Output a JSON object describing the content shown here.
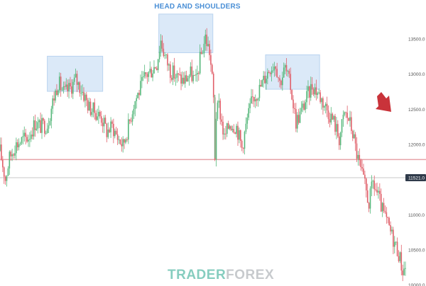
{
  "header": {
    "title": "HEAD AND SHOULDERS"
  },
  "watermark": {
    "part1": "TRADER",
    "part2": "FOREX"
  },
  "colors": {
    "up": "#55b77a",
    "down": "#e0606a",
    "neckline": "#e6a3a8",
    "price_line": "#c9c9c9",
    "highlight_fill": "#dbe9f8",
    "highlight_stroke": "#b9d3ef",
    "arrow": "#c9333a",
    "badge_bg": "#2f3a4a"
  },
  "icons": {
    "arrow": "down-right-arrow-icon"
  },
  "chart_data": {
    "type": "candlestick",
    "title": "HEAD AND SHOULDERS",
    "ylim": [
      9980,
      14050
    ],
    "y_ticks": [
      {
        "value": 13500,
        "label": "13500.0"
      },
      {
        "value": 13000,
        "label": "13000.0"
      },
      {
        "value": 12500,
        "label": "12500.0"
      },
      {
        "value": 12000,
        "label": "12000.0"
      },
      {
        "value": 11000,
        "label": "11000.0"
      },
      {
        "value": 10500,
        "label": "10500.0"
      },
      {
        "value": 10000,
        "label": "10000.0"
      }
    ],
    "current_price": {
      "value": 11521,
      "label": "11521.0"
    },
    "neckline": 11780,
    "grid": false,
    "highlight_zones": [
      {
        "name": "left-shoulder",
        "x_range": [
          70,
          152
        ],
        "y_range": [
          12750,
          13250
        ]
      },
      {
        "name": "head",
        "x_range": [
          235,
          315
        ],
        "y_range": [
          13300,
          13850
        ]
      },
      {
        "name": "right-shoulder",
        "x_range": [
          393,
          473
        ],
        "y_range": [
          12780,
          13270
        ]
      }
    ],
    "price_path": [
      [
        0,
        11900
      ],
      [
        8,
        11500
      ],
      [
        14,
        11800
      ],
      [
        22,
        11980
      ],
      [
        32,
        12050
      ],
      [
        42,
        12100
      ],
      [
        52,
        12300
      ],
      [
        60,
        12250
      ],
      [
        70,
        12280
      ],
      [
        78,
        12600
      ],
      [
        86,
        12880
      ],
      [
        95,
        12720
      ],
      [
        104,
        12800
      ],
      [
        112,
        12920
      ],
      [
        122,
        12750
      ],
      [
        132,
        12520
      ],
      [
        142,
        12450
      ],
      [
        150,
        12380
      ],
      [
        158,
        12180
      ],
      [
        166,
        12250
      ],
      [
        174,
        12100
      ],
      [
        182,
        11980
      ],
      [
        190,
        12250
      ],
      [
        198,
        12580
      ],
      [
        208,
        12800
      ],
      [
        216,
        12980
      ],
      [
        224,
        13050
      ],
      [
        232,
        13150
      ],
      [
        238,
        13480
      ],
      [
        244,
        13250
      ],
      [
        252,
        13050
      ],
      [
        262,
        12950
      ],
      [
        272,
        12900
      ],
      [
        282,
        13000
      ],
      [
        290,
        12880
      ],
      [
        296,
        13200
      ],
      [
        304,
        13520
      ],
      [
        310,
        13320
      ],
      [
        314,
        12920
      ],
      [
        318,
        12350
      ],
      [
        324,
        12550
      ],
      [
        332,
        12080
      ],
      [
        340,
        12300
      ],
      [
        350,
        12250
      ],
      [
        358,
        11950
      ],
      [
        366,
        12350
      ],
      [
        374,
        12650
      ],
      [
        384,
        12780
      ],
      [
        392,
        12950
      ],
      [
        400,
        13100
      ],
      [
        408,
        13150
      ],
      [
        414,
        12880
      ],
      [
        422,
        13080
      ],
      [
        430,
        12820
      ],
      [
        438,
        12320
      ],
      [
        446,
        12460
      ],
      [
        454,
        12660
      ],
      [
        462,
        12840
      ],
      [
        470,
        12740
      ],
      [
        478,
        12600
      ],
      [
        486,
        12460
      ],
      [
        494,
        12320
      ],
      [
        502,
        12080
      ],
      [
        510,
        12440
      ],
      [
        516,
        12360
      ],
      [
        522,
        12160
      ],
      [
        528,
        11860
      ],
      [
        534,
        11620
      ],
      [
        540,
        11400
      ],
      [
        546,
        11160
      ],
      [
        552,
        11450
      ],
      [
        558,
        11300
      ],
      [
        566,
        11050
      ],
      [
        574,
        10850
      ],
      [
        582,
        10650
      ],
      [
        590,
        10450
      ],
      [
        596,
        10200
      ],
      [
        600,
        10250
      ]
    ]
  }
}
